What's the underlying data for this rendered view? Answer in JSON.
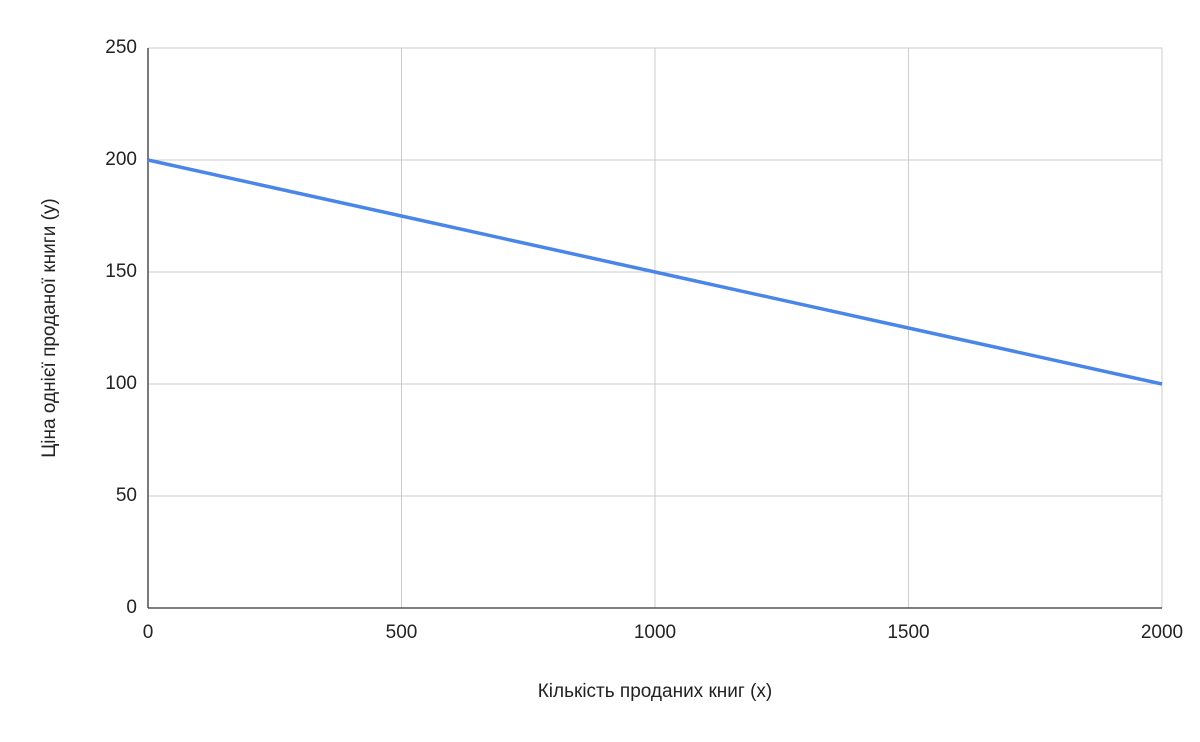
{
  "chart_data": {
    "type": "line",
    "x_label": "Кількість проданих книг (x)",
    "y_label": "Ціна однієї проданої книги (y)",
    "x": [
      0,
      500,
      1000,
      1500,
      2000
    ],
    "values": [
      200,
      175,
      150,
      125,
      100
    ],
    "color": "#4a86e8",
    "xlim": [
      0,
      2000
    ],
    "xticks": [
      0,
      500,
      1000,
      1500,
      2000
    ],
    "ylim": [
      0,
      250
    ],
    "yticks": [
      0,
      50,
      100,
      150,
      200,
      250
    ],
    "grid": true
  }
}
